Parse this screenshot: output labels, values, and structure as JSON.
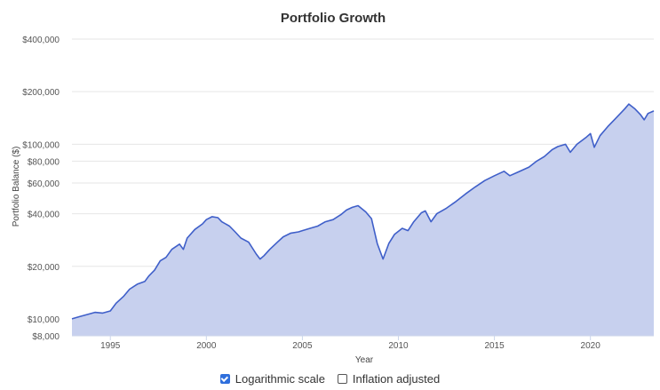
{
  "chart_data": {
    "type": "area",
    "title": "Portfolio Growth",
    "xlabel": "Year",
    "ylabel": "Portfolio Balance ($)",
    "xlim": [
      1993.0,
      2023.3
    ],
    "ylim": [
      8000,
      400000
    ],
    "log_scale": true,
    "grid": true,
    "yticks": [
      {
        "value": 8000,
        "label": "$8,000"
      },
      {
        "value": 10000,
        "label": "$10,000"
      },
      {
        "value": 20000,
        "label": "$20,000"
      },
      {
        "value": 40000,
        "label": "$40,000"
      },
      {
        "value": 60000,
        "label": "$60,000"
      },
      {
        "value": 80000,
        "label": "$80,000"
      },
      {
        "value": 100000,
        "label": "$100,000"
      },
      {
        "value": 200000,
        "label": "$200,000"
      },
      {
        "value": 400000,
        "label": "$400,000"
      }
    ],
    "xticks": [
      {
        "value": 1995,
        "label": "1995"
      },
      {
        "value": 2000,
        "label": "2000"
      },
      {
        "value": 2005,
        "label": "2005"
      },
      {
        "value": 2010,
        "label": "2010"
      },
      {
        "value": 2015,
        "label": "2015"
      },
      {
        "value": 2020,
        "label": "2020"
      }
    ],
    "series": [
      {
        "line_color": "#3f5fc9",
        "fill_color": "#c7d0ee",
        "points": [
          [
            1993.0,
            10000
          ],
          [
            1993.4,
            10300
          ],
          [
            1993.8,
            10600
          ],
          [
            1994.2,
            10900
          ],
          [
            1994.6,
            10800
          ],
          [
            1995.0,
            11100
          ],
          [
            1995.3,
            12300
          ],
          [
            1995.7,
            13500
          ],
          [
            1996.0,
            14800
          ],
          [
            1996.4,
            15800
          ],
          [
            1996.8,
            16400
          ],
          [
            1997.0,
            17600
          ],
          [
            1997.3,
            19000
          ],
          [
            1997.6,
            21500
          ],
          [
            1997.9,
            22500
          ],
          [
            1998.2,
            25000
          ],
          [
            1998.6,
            26800
          ],
          [
            1998.8,
            25000
          ],
          [
            1999.0,
            29000
          ],
          [
            1999.4,
            32500
          ],
          [
            1999.8,
            35000
          ],
          [
            2000.0,
            37000
          ],
          [
            2000.3,
            38500
          ],
          [
            2000.6,
            38000
          ],
          [
            2000.8,
            36000
          ],
          [
            2001.2,
            34000
          ],
          [
            2001.5,
            31500
          ],
          [
            2001.8,
            29000
          ],
          [
            2002.2,
            27500
          ],
          [
            2002.6,
            23500
          ],
          [
            2002.8,
            22000
          ],
          [
            2003.0,
            23000
          ],
          [
            2003.3,
            25000
          ],
          [
            2003.7,
            27500
          ],
          [
            2004.0,
            29500
          ],
          [
            2004.4,
            31000
          ],
          [
            2004.8,
            31500
          ],
          [
            2005.0,
            32000
          ],
          [
            2005.4,
            33000
          ],
          [
            2005.8,
            34000
          ],
          [
            2006.2,
            36000
          ],
          [
            2006.6,
            37000
          ],
          [
            2007.0,
            39500
          ],
          [
            2007.3,
            42000
          ],
          [
            2007.6,
            43500
          ],
          [
            2007.9,
            44500
          ],
          [
            2008.3,
            41000
          ],
          [
            2008.6,
            37500
          ],
          [
            2008.9,
            27000
          ],
          [
            2009.2,
            22000
          ],
          [
            2009.5,
            27000
          ],
          [
            2009.8,
            30500
          ],
          [
            2010.2,
            33000
          ],
          [
            2010.5,
            32000
          ],
          [
            2010.8,
            36000
          ],
          [
            2011.2,
            40500
          ],
          [
            2011.4,
            41500
          ],
          [
            2011.7,
            36000
          ],
          [
            2012.0,
            40000
          ],
          [
            2012.5,
            43000
          ],
          [
            2013.0,
            47000
          ],
          [
            2013.5,
            52000
          ],
          [
            2014.0,
            57000
          ],
          [
            2014.5,
            62000
          ],
          [
            2015.0,
            66000
          ],
          [
            2015.5,
            70000
          ],
          [
            2015.8,
            66000
          ],
          [
            2016.2,
            69000
          ],
          [
            2016.8,
            74000
          ],
          [
            2017.2,
            80000
          ],
          [
            2017.6,
            85000
          ],
          [
            2018.0,
            93000
          ],
          [
            2018.3,
            97000
          ],
          [
            2018.7,
            100000
          ],
          [
            2018.95,
            90000
          ],
          [
            2019.3,
            100000
          ],
          [
            2019.8,
            110000
          ],
          [
            2020.0,
            115000
          ],
          [
            2020.2,
            96000
          ],
          [
            2020.5,
            112000
          ],
          [
            2020.9,
            126000
          ],
          [
            2021.3,
            140000
          ],
          [
            2021.8,
            160000
          ],
          [
            2022.0,
            170000
          ],
          [
            2022.3,
            160000
          ],
          [
            2022.6,
            148000
          ],
          [
            2022.8,
            138000
          ],
          [
            2023.0,
            150000
          ],
          [
            2023.3,
            155000
          ]
        ]
      }
    ]
  },
  "controls": {
    "log_label": "Logarithmic scale",
    "log_checked": true,
    "inflation_label": "Inflation adjusted",
    "inflation_checked": false
  }
}
